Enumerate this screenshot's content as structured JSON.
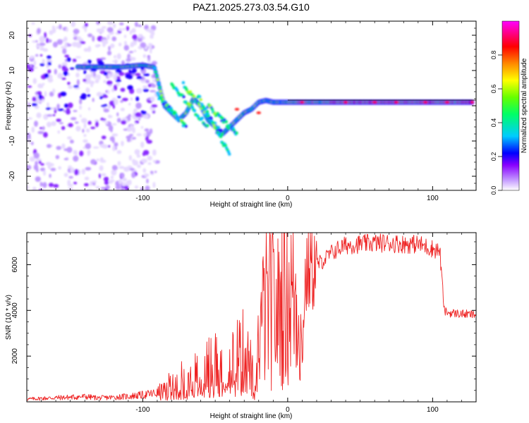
{
  "title": "PAZ1.2025.273.03.54.G10",
  "chart_data": [
    {
      "type": "heatmap",
      "panel": "top",
      "title": "PAZ1.2025.273.03.54.G10",
      "xlabel": "Height of straight line (km)",
      "ylabel": "Frequency (Hz)",
      "xlim": [
        -180,
        130
      ],
      "ylim": [
        -24,
        24
      ],
      "xticks": [
        -100,
        0,
        100
      ],
      "xtick_labels": [
        "-100",
        "0",
        "100"
      ],
      "yticks": [
        -20,
        -10,
        0,
        10,
        20
      ],
      "ytick_labels": [
        "-20",
        "-10",
        "0",
        "10",
        "20"
      ],
      "colorbar": {
        "label": "Normalized spectral amplitude",
        "range": [
          0,
          1
        ],
        "ticks": [
          0.0,
          0.2,
          0.4,
          0.6,
          0.8
        ],
        "tick_labels": [
          "0.0",
          "0.2",
          "0.4",
          "0.6",
          "0.8"
        ],
        "colors": [
          "#ffffff",
          "#8800ff",
          "#0000ff",
          "#00ccff",
          "#00ff00",
          "#ffff00",
          "#ff0000",
          "#ff00ff"
        ]
      },
      "ridge": {
        "x": [
          -145,
          -130,
          -115,
          -100,
          -92,
          -85,
          -80,
          -75,
          -70,
          -65,
          -60,
          -55,
          -50,
          -45,
          -40,
          -35,
          -30,
          -25,
          -20,
          -15,
          -10,
          -5,
          0,
          5,
          10,
          20,
          30,
          40,
          50,
          60,
          70,
          80,
          90,
          100,
          110,
          120,
          130
        ],
        "y": [
          11,
          11,
          11,
          11.5,
          11,
          0,
          -2,
          -4,
          -2,
          2,
          0,
          -4,
          -6,
          -8,
          -6,
          -4,
          -2,
          -1,
          1,
          1.5,
          1,
          1,
          1,
          1,
          1,
          1,
          1,
          1,
          1,
          1,
          1,
          1,
          1,
          1,
          1,
          1,
          1
        ]
      }
    },
    {
      "type": "line",
      "panel": "bottom",
      "color": "#ee2222",
      "xlabel": "Height of straight line (km)",
      "ylabel": "SNR (10 * v/v)",
      "xlim": [
        -180,
        130
      ],
      "ylim": [
        0,
        7400
      ],
      "xticks": [
        -100,
        0,
        100
      ],
      "xtick_labels": [
        "-100",
        "0",
        "100"
      ],
      "yticks": [
        2000,
        4000,
        6000
      ],
      "ytick_labels": [
        "2000",
        "4000",
        "6000"
      ],
      "series": [
        {
          "name": "SNR",
          "x": [
            -180,
            -170,
            -160,
            -150,
            -140,
            -130,
            -120,
            -110,
            -100,
            -90,
            -85,
            -80,
            -75,
            -70,
            -65,
            -60,
            -55,
            -50,
            -45,
            -40,
            -35,
            -30,
            -25,
            -22,
            -20,
            -18,
            -15,
            -10,
            -8,
            -5,
            0,
            5,
            8,
            10,
            11,
            12,
            15,
            20,
            25,
            30,
            35,
            40,
            50,
            60,
            70,
            80,
            90,
            100,
            105,
            108,
            110,
            120,
            130
          ],
          "y": [
            120,
            150,
            180,
            200,
            230,
            170,
            200,
            240,
            300,
            380,
            500,
            800,
            900,
            1000,
            1100,
            1300,
            1500,
            1700,
            1600,
            1800,
            2000,
            2200,
            1400,
            200,
            3000,
            3500,
            4000,
            4300,
            3600,
            4400,
            4800,
            4600,
            4200,
            1500,
            4000,
            5200,
            5800,
            6000,
            6200,
            6500,
            6700,
            6850,
            6900,
            6950,
            6950,
            6900,
            6900,
            6700,
            6600,
            4000,
            3900,
            3850,
            3800
          ]
        }
      ]
    }
  ]
}
